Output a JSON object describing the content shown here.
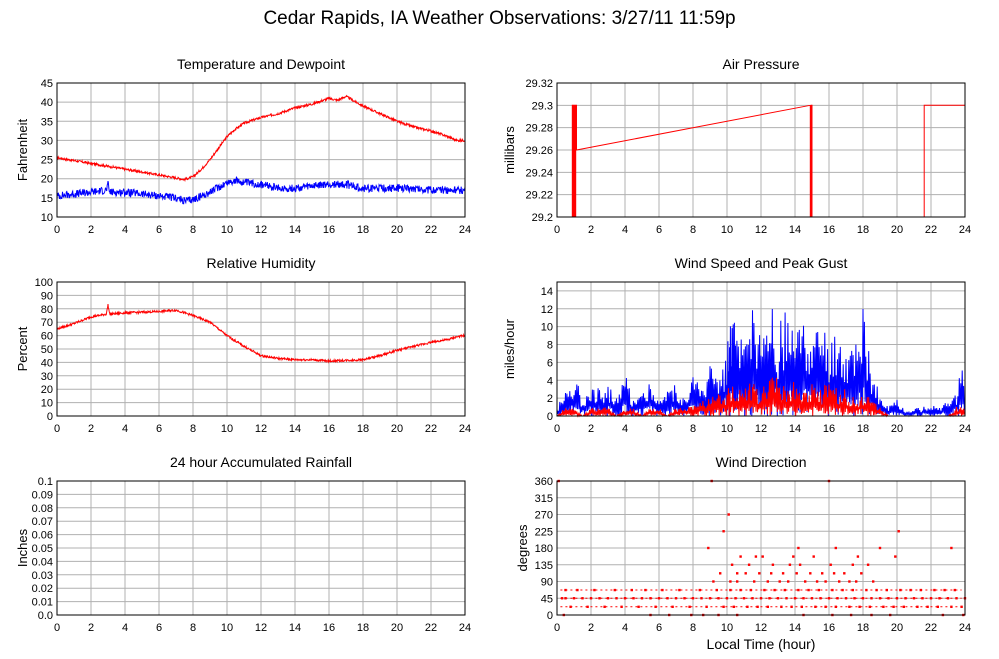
{
  "page_title": "Cedar Rapids, IA Weather Observations: 3/27/11 11:59p",
  "x_axis_label": "Local Time (hour)",
  "colors": {
    "red_series": "#ff0000",
    "blue_series": "#0000ff",
    "grid": "#b0b0b0"
  },
  "chart_data": [
    {
      "id": "temp",
      "type": "line",
      "title": "Temperature and Dewpoint",
      "ylabel": "Fahrenheit",
      "xlim": [
        0,
        24
      ],
      "ylim": [
        10,
        45
      ],
      "xticks": [
        0,
        2,
        4,
        6,
        8,
        10,
        12,
        14,
        16,
        18,
        20,
        22,
        24
      ],
      "yticks": [
        10,
        15,
        20,
        25,
        30,
        35,
        40,
        45
      ],
      "series": [
        {
          "color": "#ff0000",
          "noise": 0.3,
          "x": [
            0,
            2,
            4,
            6,
            7,
            7.5,
            8,
            8.5,
            9,
            9.5,
            10,
            10.5,
            11,
            12,
            13,
            14,
            15,
            16,
            16.5,
            17,
            18,
            19,
            20,
            21,
            22,
            23,
            23.5,
            24
          ],
          "y": [
            25.5,
            24,
            22.5,
            21,
            20.2,
            19.8,
            20.5,
            22.5,
            25,
            28,
            31,
            33,
            34.5,
            36,
            37,
            38.5,
            39.5,
            41,
            40.5,
            41.5,
            39,
            37,
            35,
            33.5,
            32.5,
            31,
            30,
            30
          ]
        },
        {
          "color": "#0000ff",
          "noise": 1.0,
          "x": [
            0,
            1,
            2,
            2.9,
            3,
            3.1,
            4,
            5,
            6,
            7,
            7.5,
            8,
            9,
            10,
            10.5,
            11,
            12,
            13,
            14,
            15,
            16,
            17,
            18,
            19,
            20,
            21,
            22,
            23,
            24
          ],
          "y": [
            15.5,
            16,
            16.5,
            17,
            18.5,
            16.5,
            16.5,
            16,
            15.5,
            15,
            14.2,
            14.5,
            16.5,
            19,
            19.5,
            19,
            18.5,
            17.5,
            17.5,
            18,
            18.5,
            18.5,
            17.5,
            17.5,
            17.5,
            17.5,
            17,
            17,
            17
          ]
        }
      ]
    },
    {
      "id": "pressure",
      "type": "line",
      "title": "Air Pressure",
      "ylabel": "millibars",
      "xlim": [
        0,
        24
      ],
      "ylim": [
        29.2,
        29.32
      ],
      "xticks": [
        0,
        2,
        4,
        6,
        8,
        10,
        12,
        14,
        16,
        18,
        20,
        22,
        24
      ],
      "yticks": [
        29.2,
        29.22,
        29.24,
        29.26,
        29.28,
        29.3,
        29.32
      ],
      "series": [
        {
          "color": "#ff0000",
          "noise": 0,
          "x": [
            0,
            0.9,
            0.9,
            0.95,
            0.95,
            1.0,
            1.0,
            1.05,
            1.05,
            1.1,
            1.1,
            1.15,
            1.15,
            14.9,
            14.9,
            14.95,
            14.95,
            15.0,
            15.0,
            15.05,
            15.05,
            21.6,
            21.6,
            24
          ],
          "y": [
            29.2,
            29.2,
            29.3,
            29.3,
            29.2,
            29.2,
            29.3,
            29.3,
            29.2,
            29.2,
            29.3,
            29.3,
            29.26,
            29.3,
            29.2,
            29.2,
            29.3,
            29.3,
            29.2,
            29.2,
            29.2,
            29.2,
            29.3,
            29.3
          ]
        }
      ]
    },
    {
      "id": "humidity",
      "type": "line",
      "title": "Relative Humidity",
      "ylabel": "Percent",
      "xlim": [
        0,
        24
      ],
      "ylim": [
        0,
        100
      ],
      "xticks": [
        0,
        2,
        4,
        6,
        8,
        10,
        12,
        14,
        16,
        18,
        20,
        22,
        24
      ],
      "yticks": [
        0,
        10,
        20,
        30,
        40,
        50,
        60,
        70,
        80,
        90,
        100
      ],
      "series": [
        {
          "color": "#ff0000",
          "noise": 0.8,
          "x": [
            0,
            1,
            2,
            2.9,
            3,
            3.1,
            4,
            5,
            6,
            7,
            7.5,
            8,
            9,
            10,
            11,
            12,
            13,
            14,
            15,
            16,
            17,
            18,
            19,
            20,
            21,
            22,
            23,
            23.5,
            24
          ],
          "y": [
            65,
            69,
            74,
            76,
            83,
            76,
            77,
            77.5,
            78,
            79,
            77,
            75,
            70,
            60,
            52,
            45,
            43,
            42,
            42,
            41,
            41.5,
            42,
            45,
            49,
            52,
            55,
            57,
            59,
            60
          ]
        }
      ]
    },
    {
      "id": "wind",
      "type": "line",
      "title": "Wind Speed and Peak Gust",
      "ylabel": "miles/hour",
      "xlim": [
        0,
        24
      ],
      "ylim": [
        0,
        15
      ],
      "xticks": [
        0,
        2,
        4,
        6,
        8,
        10,
        12,
        14,
        16,
        18,
        20,
        22,
        24
      ],
      "yticks": [
        0,
        2,
        4,
        6,
        8,
        10,
        12,
        14
      ],
      "series": [
        {
          "color": "#0000ff",
          "noise": 0,
          "x": [
            0,
            0.5,
            1,
            1.5,
            2,
            2.5,
            3,
            3.5,
            4,
            4.5,
            5,
            5.5,
            6,
            6.5,
            7,
            7.5,
            8,
            8.5,
            9,
            9.5,
            10,
            10.3,
            10.5,
            11,
            11.5,
            12,
            12.5,
            13,
            13.5,
            14,
            14.5,
            15,
            15.5,
            16,
            16.5,
            17,
            17.5,
            18,
            18.5,
            19,
            19.5,
            20,
            20.5,
            21,
            21.5,
            22,
            22.5,
            23,
            23.5,
            24
          ],
          "y": [
            1,
            3,
            5,
            2,
            4,
            3,
            4,
            2,
            5,
            2,
            3,
            4,
            2,
            3,
            4,
            2,
            5,
            3,
            6,
            4,
            8,
            13,
            10,
            8,
            12,
            9,
            13,
            10,
            12,
            9,
            12,
            8,
            11,
            8,
            10,
            7,
            9,
            12,
            6,
            2,
            1,
            2,
            0.5,
            1,
            1,
            1.5,
            1,
            2,
            3,
            8
          ]
        },
        {
          "color": "#ff0000",
          "noise": 0,
          "x": [
            0,
            0.5,
            1,
            1.5,
            2,
            2.5,
            3,
            3.5,
            4,
            4.5,
            5,
            5.5,
            6,
            6.5,
            7,
            7.5,
            8,
            8.5,
            9,
            9.5,
            10,
            10.5,
            11,
            11.5,
            12,
            12.5,
            13,
            13.5,
            14,
            14.5,
            15,
            15.5,
            16,
            16.5,
            17,
            17.5,
            18,
            18.5,
            19,
            19.5,
            20,
            20.5,
            21,
            21.5,
            22,
            22.5,
            23,
            23.5,
            24
          ],
          "y": [
            0,
            1,
            1,
            0,
            1,
            1,
            1,
            0,
            1,
            1,
            0,
            1,
            1,
            0,
            1,
            1,
            1,
            2,
            2,
            3,
            3,
            4,
            3,
            4,
            3,
            4,
            5,
            3,
            4,
            3,
            4,
            3,
            4,
            3,
            3,
            2,
            3,
            2,
            1,
            0,
            0,
            0,
            0,
            0,
            0,
            0,
            0,
            1,
            1
          ]
        }
      ]
    },
    {
      "id": "rain",
      "type": "line",
      "title": "24 hour Accumulated Rainfall",
      "ylabel": "Inches",
      "xlim": [
        0,
        24
      ],
      "ylim": [
        0,
        0.1
      ],
      "xticks": [
        0,
        2,
        4,
        6,
        8,
        10,
        12,
        14,
        16,
        18,
        20,
        22,
        24
      ],
      "yticks": [
        0.0,
        0.01,
        0.02,
        0.03,
        0.04,
        0.05,
        0.06,
        0.07,
        0.08,
        0.09,
        0.1
      ],
      "ytick_labels": [
        "0.0",
        "0.01",
        "0.02",
        "0.03",
        "0.04",
        "0.05",
        "0.06",
        "0.07",
        "0.08",
        "0.09",
        "0.1"
      ],
      "series": [
        {
          "color": "#ff0000",
          "noise": 0,
          "x": [
            0,
            24
          ],
          "y": [
            0,
            0
          ]
        }
      ]
    },
    {
      "id": "direction",
      "type": "scatter",
      "title": "Wind Direction",
      "ylabel": "degrees",
      "xlim": [
        0,
        24
      ],
      "ylim": [
        0,
        360
      ],
      "xticks": [
        0,
        2,
        4,
        6,
        8,
        10,
        12,
        14,
        16,
        18,
        20,
        22,
        24
      ],
      "yticks": [
        0,
        45,
        90,
        135,
        180,
        225,
        270,
        315,
        360
      ],
      "series": [
        {
          "color": "#ff0000",
          "x": [
            0.1,
            0.3,
            0.5,
            1,
            1.5,
            2,
            2.5,
            3,
            3.5,
            4,
            4.5,
            5,
            5.5,
            6,
            6.5,
            7,
            7.5,
            8,
            8.5,
            9,
            9.5,
            10,
            10.5,
            11,
            11.5,
            12,
            12.5,
            13,
            13.5,
            14,
            14.5,
            15,
            15.5,
            16,
            16.5,
            17,
            17.5,
            18,
            18.5,
            19,
            19.5,
            20,
            20.5,
            21,
            21.5,
            22,
            22.5,
            23,
            23.5,
            24,
            0.5,
            1.2,
            2.2,
            3.4,
            4.4,
            5.2,
            6.2,
            7.2,
            8.4,
            9.4,
            10.2,
            10.8,
            11.4,
            12.2,
            12.8,
            13.4,
            14.2,
            14.8,
            15.4,
            16.2,
            16.8,
            17.4,
            18.2,
            18.8,
            19.4,
            20.2,
            20.8,
            21.4,
            22.2,
            22.8,
            23.4,
            0.8,
            1.8,
            2.8,
            3.8,
            4.8,
            5.8,
            6.8,
            7.8,
            8.8,
            9.8,
            10.4,
            11.2,
            11.8,
            12.4,
            13.2,
            13.8,
            14.4,
            15.2,
            15.8,
            16.4,
            17.2,
            17.8,
            18.4,
            19.2,
            19.8,
            20.4,
            21.2,
            21.8,
            22.4,
            23.2,
            23.8,
            9.2,
            10.2,
            10.6,
            11.6,
            12.4,
            13.1,
            13.6,
            14.6,
            15.3,
            15.8,
            16.6,
            17.2,
            17.6,
            18.6,
            9.6,
            10.6,
            11.1,
            11.9,
            12.6,
            13.3,
            14.1,
            14.9,
            15.6,
            16.3,
            16.9,
            17.9,
            10.3,
            11.3,
            12.7,
            13.7,
            14.3,
            16.1,
            17.4,
            18.3,
            10.8,
            11.7,
            12.1,
            13.9,
            15.1,
            17.7,
            19.9,
            8.9,
            9.1,
            9.8,
            10.1,
            14.2,
            16.0,
            16.4,
            19.0,
            20.1,
            23.2,
            0.4,
            5.5,
            6.6,
            7.9,
            8.6,
            9.5,
            10.6,
            14.5,
            16.2,
            17.3,
            18.5,
            19.6,
            22.7,
            23.9
          ],
          "y": [
            360,
            45,
            45,
            45,
            45,
            45,
            45,
            45,
            45,
            45,
            45,
            45,
            45,
            45,
            45,
            45,
            45,
            45,
            45,
            45,
            45,
            45,
            45,
            45,
            45,
            45,
            45,
            45,
            45,
            45,
            45,
            45,
            45,
            45,
            45,
            45,
            45,
            45,
            45,
            45,
            45,
            45,
            45,
            45,
            45,
            45,
            45,
            45,
            45,
            45,
            67,
            67,
            67,
            67,
            67,
            67,
            67,
            67,
            67,
            67,
            67,
            67,
            67,
            67,
            67,
            67,
            67,
            67,
            67,
            67,
            67,
            67,
            67,
            67,
            67,
            67,
            67,
            67,
            67,
            67,
            67,
            22,
            22,
            22,
            22,
            22,
            22,
            22,
            22,
            22,
            22,
            22,
            22,
            22,
            22,
            22,
            22,
            22,
            22,
            22,
            22,
            22,
            22,
            22,
            22,
            22,
            22,
            22,
            22,
            22,
            22,
            22,
            90,
            90,
            90,
            90,
            90,
            90,
            90,
            90,
            90,
            90,
            90,
            90,
            90,
            90,
            112,
            112,
            112,
            112,
            112,
            112,
            112,
            112,
            112,
            112,
            112,
            112,
            135,
            135,
            135,
            135,
            135,
            135,
            135,
            135,
            157,
            157,
            157,
            157,
            157,
            157,
            157,
            180,
            360,
            225,
            270,
            180,
            360,
            180,
            180,
            225,
            180,
            0,
            0,
            0,
            0,
            0,
            0,
            0,
            0,
            0,
            0,
            0,
            0,
            0,
            0
          ]
        }
      ]
    }
  ]
}
